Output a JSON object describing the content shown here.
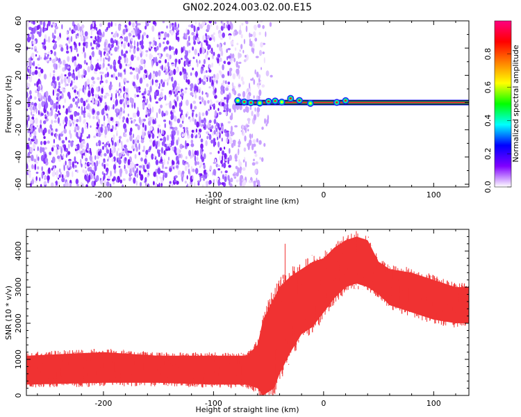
{
  "chart_data": [
    {
      "type": "heatmap",
      "title": "GN02.2024.003.02.00.E15",
      "xlabel": "Height of straight line (km)",
      "ylabel": "Frequency (Hz)",
      "xlim": [
        -270,
        132
      ],
      "ylim": [
        -62,
        60
      ],
      "xticks": [
        -200,
        -100,
        0,
        100
      ],
      "yticks": [
        60,
        40,
        20,
        0,
        -20,
        -40,
        -60
      ],
      "noise_region_x": [
        -270,
        -60
      ],
      "signal_line": {
        "y": 0,
        "x_start": -80,
        "x_end": 132
      },
      "colorbar": {
        "label": "Normalized spectral amplitude",
        "range": [
          0,
          1
        ],
        "ticks": [
          "0.0",
          "0.2",
          "0.4",
          "0.6",
          "0.8"
        ],
        "colors": [
          "#ffffff",
          "#8000ff",
          "#0000ff",
          "#00ffff",
          "#00ff00",
          "#ffff00",
          "#ff8000",
          "#ff0000",
          "#ff0080"
        ]
      }
    },
    {
      "type": "line",
      "xlabel": "Height of straight line (km)",
      "ylabel": "SNR (10 * v/v)",
      "xlim": [
        -270,
        132
      ],
      "ylim": [
        0,
        4600
      ],
      "xticks": [
        -200,
        -100,
        0,
        100
      ],
      "yticks": [
        0,
        1000,
        2000,
        3000,
        4000
      ],
      "color": "#f03232",
      "envelope": {
        "x": [
          -270,
          -200,
          -150,
          -100,
          -70,
          -60,
          -55,
          -45,
          -40,
          -30,
          -20,
          -10,
          0,
          10,
          20,
          30,
          40,
          50,
          60,
          80,
          100,
          120,
          132
        ],
        "low": [
          300,
          350,
          350,
          300,
          300,
          200,
          0,
          200,
          600,
          1200,
          1700,
          1900,
          2300,
          2700,
          3000,
          3100,
          3000,
          2800,
          2500,
          2300,
          2100,
          2000,
          2000
        ],
        "high": [
          1100,
          1200,
          1100,
          1100,
          1100,
          1400,
          2100,
          2700,
          3000,
          3300,
          3500,
          3700,
          3800,
          4100,
          4300,
          4400,
          4300,
          3700,
          3500,
          3400,
          3200,
          3000,
          3000
        ]
      },
      "spikes": [
        {
          "x": -35,
          "y": 4200
        },
        {
          "x": 28,
          "y": 4450
        },
        {
          "x": 35,
          "y": 4350
        }
      ]
    }
  ]
}
